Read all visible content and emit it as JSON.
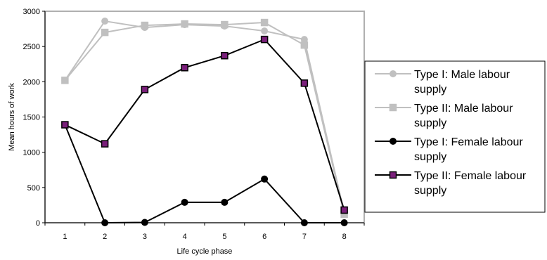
{
  "chart_data": {
    "type": "line",
    "title": "",
    "xlabel": "Life cycle phase",
    "ylabel": "Mean hours of work",
    "x": [
      1,
      2,
      3,
      4,
      5,
      6,
      7,
      8
    ],
    "ylim": [
      0,
      3000
    ],
    "yticks": [
      0,
      500,
      1000,
      1500,
      2000,
      2500,
      3000
    ],
    "grid": false,
    "legend_position": "right",
    "series": [
      {
        "name_lines": [
          "Type I: Male labour",
          "supply"
        ],
        "values": [
          2020,
          2860,
          2770,
          2810,
          2790,
          2720,
          2600,
          140
        ],
        "color": "#c0c0c0",
        "marker": "circle",
        "marker_fill": "#c0c0c0"
      },
      {
        "name_lines": [
          "Type II: Male labour",
          "supply"
        ],
        "values": [
          2020,
          2700,
          2800,
          2820,
          2810,
          2840,
          2520,
          120
        ],
        "color": "#c0c0c0",
        "marker": "square",
        "marker_fill": "#c0c0c0"
      },
      {
        "name_lines": [
          "Type I: Female labour",
          "supply"
        ],
        "values": [
          1390,
          0,
          5,
          290,
          290,
          620,
          0,
          0
        ],
        "color": "#000000",
        "marker": "circle",
        "marker_fill": "#000000"
      },
      {
        "name_lines": [
          "Type II: Female labour",
          "supply"
        ],
        "values": [
          1390,
          1120,
          1890,
          2200,
          2370,
          2600,
          1980,
          180
        ],
        "color": "#000000",
        "marker": "square",
        "marker_fill": "#7a1f7a"
      }
    ]
  }
}
